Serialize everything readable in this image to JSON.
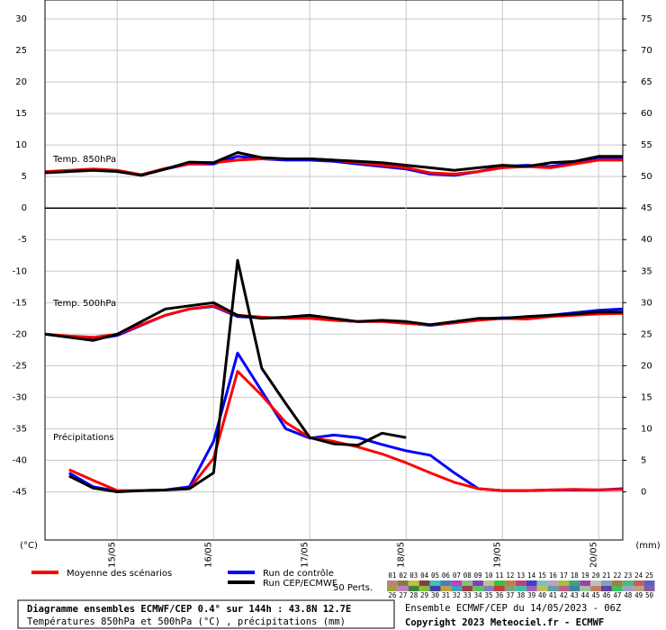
{
  "chart_data": {
    "type": "line",
    "panel_labels": [
      "Temp. 850hPa",
      "Temp. 500hPa",
      "Précipitations"
    ],
    "ylabel": "(°C)",
    "y2label": "(mm)",
    "x": [
      0,
      6,
      12,
      18,
      24,
      30,
      36,
      42,
      48,
      54,
      60,
      66,
      72,
      78,
      84,
      90,
      96,
      102,
      108,
      114,
      120,
      126,
      132,
      138,
      144
    ],
    "xlim": [
      0,
      144
    ],
    "xticks": [
      {
        "value": 18,
        "label": "15/05"
      },
      {
        "value": 42,
        "label": "16/05"
      },
      {
        "value": 66,
        "label": "17/05"
      },
      {
        "value": 90,
        "label": "18/05"
      },
      {
        "value": 114,
        "label": "19/05"
      },
      {
        "value": 138,
        "label": "20/05"
      }
    ],
    "ylim": [
      -52.5,
      33
    ],
    "yticks": [
      30,
      25,
      20,
      15,
      10,
      5,
      0,
      -5,
      -10,
      -15,
      -20,
      -25,
      -30,
      -35,
      -40,
      -45
    ],
    "y2lim": [
      -7.5,
      78
    ],
    "y2ticks": [
      75,
      70,
      65,
      60,
      55,
      50,
      45,
      40,
      35,
      30,
      25,
      20,
      15,
      10,
      5,
      0
    ],
    "grid": true,
    "series": [
      {
        "name": "Run de contrôle",
        "color": "#0000ff",
        "t850": [
          5.7,
          5.9,
          6.1,
          5.9,
          5.2,
          6.2,
          7.0,
          7.0,
          8.2,
          7.8,
          7.6,
          7.6,
          7.4,
          7.0,
          6.6,
          6.2,
          5.4,
          5.2,
          5.8,
          6.6,
          6.8,
          6.6,
          7.2,
          7.8,
          7.8
        ],
        "t500": [
          -20.0,
          -20.4,
          -20.8,
          -20.2,
          -18.6,
          -17.0,
          -16.0,
          -15.6,
          -17.2,
          -17.4,
          -17.4,
          -17.4,
          -17.8,
          -18.0,
          -17.9,
          -18.2,
          -18.6,
          -18.2,
          -17.6,
          -17.4,
          -17.4,
          -17.0,
          -16.6,
          -16.2,
          -16.0
        ],
        "precip": [
          null,
          3.0,
          0.8,
          0.1,
          0.2,
          0.3,
          0.8,
          8.0,
          22.0,
          16.0,
          10.0,
          8.5,
          9.0,
          8.6,
          7.5,
          6.5,
          5.8,
          3.0,
          0.5,
          0.2,
          0.2,
          0.3,
          0.3,
          0.3,
          0.5
        ]
      },
      {
        "name": "Moyenne des scénarios",
        "color": "#ff0000",
        "t850": [
          5.8,
          6.0,
          6.2,
          6.0,
          5.3,
          6.3,
          7.0,
          7.2,
          7.6,
          7.8,
          7.8,
          7.8,
          7.6,
          7.2,
          6.8,
          6.4,
          5.6,
          5.4,
          5.8,
          6.4,
          6.6,
          6.4,
          7.0,
          7.6,
          7.6
        ],
        "t500": [
          -20.0,
          -20.3,
          -20.5,
          -20.0,
          -18.5,
          -17.0,
          -16.0,
          -15.5,
          -17.0,
          -17.3,
          -17.5,
          -17.5,
          -17.8,
          -18.0,
          -18.0,
          -18.3,
          -18.5,
          -18.2,
          -17.8,
          -17.5,
          -17.6,
          -17.2,
          -17.0,
          -16.8,
          -16.7
        ],
        "precip": [
          null,
          3.5,
          1.8,
          0.2,
          0.2,
          0.3,
          0.5,
          5.3,
          19.1,
          15.3,
          11.0,
          8.6,
          8.0,
          7.1,
          6.0,
          4.6,
          3.0,
          1.5,
          0.5,
          0.2,
          0.2,
          0.3,
          0.4,
          0.3,
          0.4
        ]
      },
      {
        "name": "Run CEP/ECMWF",
        "color": "#000000",
        "t850": [
          5.6,
          5.8,
          6.0,
          5.8,
          5.2,
          6.2,
          7.3,
          7.2,
          8.8,
          8.0,
          7.8,
          7.8,
          7.6,
          7.4,
          7.2,
          6.8,
          6.4,
          6.0,
          6.4,
          6.8,
          6.6,
          7.2,
          7.4,
          8.2,
          8.2
        ],
        "t500": [
          -20.0,
          -20.5,
          -21.0,
          -20.0,
          -18.0,
          -16.0,
          -15.5,
          -15.0,
          -17.0,
          -17.5,
          -17.3,
          -17.0,
          -17.5,
          -18.0,
          -17.8,
          -18.0,
          -18.5,
          -18.0,
          -17.5,
          -17.5,
          -17.2,
          -17.0,
          -16.8,
          -16.5,
          -16.5
        ],
        "precip": [
          null,
          2.5,
          0.6,
          0.0,
          0.2,
          0.3,
          0.5,
          3.0,
          36.7,
          19.6,
          14.0,
          8.6,
          7.6,
          7.4,
          9.3,
          8.6,
          null,
          null,
          null,
          null,
          null,
          null,
          null,
          null,
          null
        ]
      }
    ],
    "perturbations": {
      "label": "50 Perts.",
      "names": [
        "01",
        "02",
        "03",
        "04",
        "05",
        "06",
        "07",
        "08",
        "09",
        "10",
        "11",
        "12",
        "13",
        "14",
        "15",
        "16",
        "17",
        "18",
        "19",
        "20",
        "21",
        "22",
        "23",
        "24",
        "25",
        "26",
        "27",
        "28",
        "29",
        "30",
        "31",
        "32",
        "33",
        "34",
        "35",
        "36",
        "37",
        "38",
        "39",
        "40",
        "41",
        "42",
        "43",
        "44",
        "45",
        "46",
        "47",
        "48",
        "49",
        "50"
      ],
      "colors": [
        "#c08080",
        "#808040",
        "#c0c040",
        "#804040",
        "#40c0c0",
        "#4080c0",
        "#c040c0",
        "#80c080",
        "#8040c0",
        "#c0c080",
        "#40c040",
        "#c08040",
        "#c04080",
        "#4040c0",
        "#80c0c0",
        "#c0a0c0",
        "#a0c040",
        "#40a080",
        "#a040a0",
        "#c0c0c0",
        "#80a0c0",
        "#a08040",
        "#40c080",
        "#c06060",
        "#6060c0",
        "#a0a040",
        "#c080c0",
        "#408040",
        "#80c040",
        "#4040a0",
        "#c0a040",
        "#40a0c0",
        "#a04040",
        "#60c060",
        "#8080c0",
        "#c04040",
        "#80a080",
        "#40c0a0",
        "#a060c0",
        "#c0c060",
        "#60a0a0",
        "#c06080",
        "#4080a0",
        "#a0c0a0",
        "#c08060",
        "#6040a0",
        "#40c060",
        "#a0a0c0",
        "#c0a080",
        "#8060a0"
      ]
    },
    "footer": {
      "title": "Diagramme ensembles ECMWF/CEP 0.4° sur 144h : 43.8N 12.7E",
      "subtitle": "Températures 850hPa et 500hPa (°C) , précipitations (mm)",
      "run": "Ensemble ECMWF/CEP du 14/05/2023 - 06Z",
      "copyright": "Copyright 2023 Meteociel.fr - ECMWF"
    }
  }
}
